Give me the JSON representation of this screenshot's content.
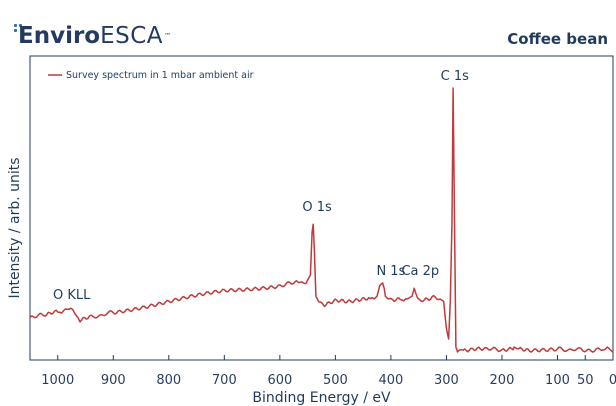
{
  "header": {
    "logo_bold": "Enviro",
    "logo_thin": "ESCA",
    "logo_tm": "™",
    "sample_name": "Coffee bean"
  },
  "colors": {
    "line": "#c0393b",
    "axis": "#1f3b5a",
    "tick_text": "#2a3f5f"
  },
  "chart_data": {
    "type": "line",
    "title": "",
    "xlabel": "Binding Energy / eV",
    "ylabel": "Intensity / arb. units",
    "xlim": [
      1050,
      0
    ],
    "x_reversed": true,
    "ylim": [
      0,
      100
    ],
    "xticks": [
      1000,
      900,
      800,
      700,
      600,
      500,
      400,
      300,
      200,
      100,
      50,
      0
    ],
    "xtick_labels": [
      "1000",
      "900",
      "800",
      "700",
      "600",
      "500",
      "400",
      "300",
      "200",
      "100",
      "50",
      "0"
    ],
    "grid": false,
    "legend": "top-left",
    "series": [
      {
        "name": "Survey spectrum in 1 mbar ambient air",
        "x": [
          1050,
          1020,
          1000,
          990,
          980,
          970,
          960,
          940,
          900,
          850,
          800,
          750,
          700,
          650,
          600,
          570,
          560,
          550,
          545,
          542,
          540,
          538,
          535,
          530,
          520,
          500,
          480,
          460,
          440,
          430,
          425,
          420,
          415,
          412,
          410,
          405,
          400,
          380,
          370,
          362,
          358,
          352,
          340,
          320,
          305,
          300,
          296,
          293,
          290,
          288,
          285,
          283,
          280,
          270,
          250,
          230,
          200,
          180,
          178,
          170,
          150,
          100,
          60,
          30,
          15,
          10,
          5,
          0
        ],
        "y": [
          14,
          15,
          16,
          17,
          17,
          16,
          13,
          14,
          16,
          18,
          20,
          22,
          24,
          25,
          26,
          27,
          27,
          28,
          30,
          46,
          49,
          40,
          22,
          20,
          19,
          20,
          20,
          21,
          21,
          21,
          22,
          26,
          27,
          25,
          22,
          21,
          21,
          21,
          21,
          22,
          25,
          21,
          21,
          22,
          20,
          10,
          6,
          20,
          50,
          100,
          40,
          3,
          2,
          2,
          2,
          2,
          2,
          2,
          3,
          2,
          2,
          2,
          2,
          2,
          2,
          3,
          2,
          1
        ]
      }
    ],
    "annotations": [
      {
        "text": "C 1s",
        "x": 285,
        "y": 103
      },
      {
        "text": "O 1s",
        "x": 533,
        "y": 54
      },
      {
        "text": "N 1s",
        "x": 400,
        "y": 30
      },
      {
        "text": "Ca 2p",
        "x": 347,
        "y": 30
      },
      {
        "text": "O KLL",
        "x": 975,
        "y": 21
      }
    ]
  }
}
